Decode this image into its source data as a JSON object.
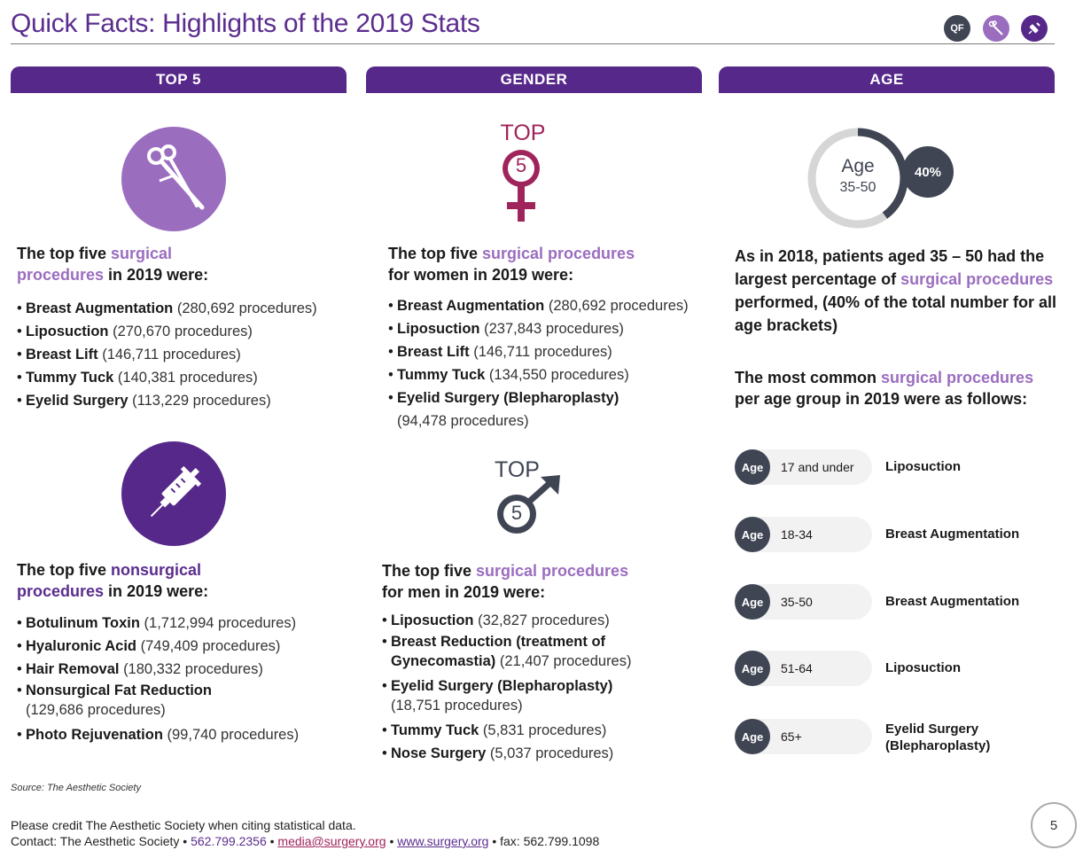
{
  "header": {
    "title": "Quick Facts: Highlights of the 2019 Stats",
    "icons": [
      {
        "name": "qf-icon",
        "label": "QF",
        "color": "#3f4553"
      },
      {
        "name": "scissors-icon",
        "label": "",
        "color": "#9b6dbf"
      },
      {
        "name": "syringe-icon",
        "label": "",
        "color": "#56288a"
      }
    ]
  },
  "tabs": {
    "top5": "TOP 5",
    "gender": "GENDER",
    "age": "AGE"
  },
  "colors": {
    "purple_dark": "#56288a",
    "purple_light": "#9b6dbf",
    "magenta": "#a0245c",
    "slate": "#3f4553"
  },
  "surgical": {
    "lead_pre": "The top five ",
    "lead_hl": "surgical procedures",
    "lead_post": " in 2019 were:",
    "items": [
      {
        "name": "Breast Augmentation",
        "count": "(280,692 procedures)"
      },
      {
        "name": "Liposuction",
        "count": "(270,670 procedures)"
      },
      {
        "name": "Breast Lift",
        "count": "(146,711 procedures)"
      },
      {
        "name": "Tummy Tuck",
        "count": "(140,381 procedures)"
      },
      {
        "name": "Eyelid Surgery",
        "count": "(113,229 procedures)"
      }
    ]
  },
  "nonsurgical": {
    "lead_pre": "The top five ",
    "lead_hl": "nonsurgical procedures",
    "lead_post": " in 2019 were:",
    "items": [
      {
        "name": "Botulinum Toxin",
        "count": "(1,712,994 procedures)"
      },
      {
        "name": "Hyaluronic Acid",
        "count": "(749,409 procedures)"
      },
      {
        "name": "Hair Removal",
        "count": "(180,332 procedures)"
      },
      {
        "name": "Nonsurgical Fat Reduction",
        "count": "(129,686 procedures)"
      },
      {
        "name": "Photo Rejuvenation",
        "count": "(99,740 procedures)"
      }
    ]
  },
  "women": {
    "icon_top": "TOP",
    "icon_num": "5",
    "lead_pre": "The top five ",
    "lead_hl": "surgical procedures",
    "lead_post": "for women in 2019 were:",
    "items": [
      {
        "name": "Breast Augmentation",
        "count": "(280,692 procedures)"
      },
      {
        "name": "Liposuction",
        "count": "(237,843 procedures)"
      },
      {
        "name": "Breast Lift",
        "count": "(146,711 procedures)"
      },
      {
        "name": "Tummy Tuck",
        "count": "(134,550 procedures)"
      },
      {
        "name": "Eyelid Surgery (Blepharoplasty)",
        "count": "(94,478 procedures)"
      }
    ]
  },
  "men": {
    "icon_top": "TOP",
    "icon_num": "5",
    "lead_pre": "The top five ",
    "lead_hl": "surgical procedures",
    "lead_post": "for men in 2019 were:",
    "items": [
      {
        "name": "Liposuction",
        "count": "(32,827 procedures)"
      },
      {
        "name": "Breast Reduction (treatment of Gynecomastia)",
        "count": "(21,407 procedures)"
      },
      {
        "name": "Eyelid Surgery (Blepharoplasty)",
        "count": "(18,751 procedures)"
      },
      {
        "name": "Tummy Tuck",
        "count": "(5,831 procedures)"
      },
      {
        "name": "Nose Surgery",
        "count": "(5,037 procedures)"
      }
    ]
  },
  "age": {
    "ring_label": "Age",
    "ring_range": "35-50",
    "ring_percent_label": "40%",
    "ring_percent": 40,
    "para1_pre": "As in 2018, patients aged 35 – 50 had the largest percentage of ",
    "para1_hl": "surgical procedures",
    "para1_post": " performed, (40% of the total number for all age brackets)",
    "para2_pre": "The most common ",
    "para2_hl": "surgical procedures",
    "para2_post": "per age group in 2019 were as follows:",
    "badge": "Age",
    "groups": [
      {
        "range": "17 and under",
        "procedure": "Liposuction"
      },
      {
        "range": "18-34",
        "procedure": "Breast Augmentation"
      },
      {
        "range": "35-50",
        "procedure": "Breast Augmentation"
      },
      {
        "range": "51-64",
        "procedure": "Liposuction"
      },
      {
        "range": "65+",
        "procedure": "Eyelid Surgery (Blepharoplasty)"
      }
    ]
  },
  "footer": {
    "source": "Source: The Aesthetic Society",
    "credit": "Please credit The Aesthetic Society when citing statistical data.",
    "contact_pre": "Contact: The Aesthetic Society •",
    "phone": "562.799.2356",
    "email": "media@surgery.org",
    "website": "www.surgery.org",
    "fax": "• fax: 562.799.1098",
    "sep": "•",
    "page": "5"
  }
}
